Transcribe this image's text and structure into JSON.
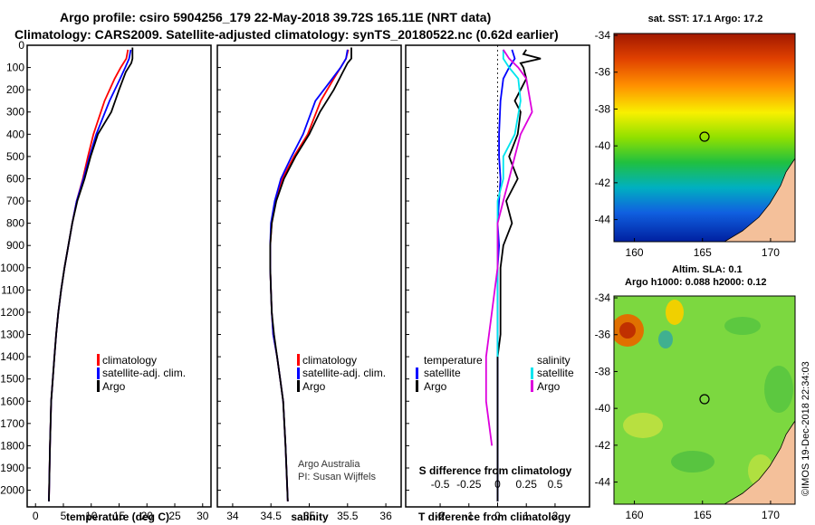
{
  "title": {
    "line1": "Argo profile: csiro 5904256_179 22-May-2018 39.72S 165.11E (NRT data)",
    "line2": "Climatology: CARS2009. Satellite-adjusted climatology: synTS_20180522.nc (0.62d earlier)"
  },
  "colors": {
    "climatology": "#ff0000",
    "satellite": "#0000ff",
    "argo": "#000000",
    "sat_salinity": "#00e5ee",
    "argo_salinity": "#dd00dd"
  },
  "depth_ticks": [
    0,
    100,
    200,
    300,
    400,
    500,
    600,
    700,
    800,
    900,
    1000,
    1100,
    1200,
    1300,
    1400,
    1500,
    1600,
    1700,
    1800,
    1900,
    2000
  ],
  "legend": {
    "climatology": "climatology",
    "satellite_adj": "satellite-adj. clim.",
    "argo": "Argo",
    "temperature": "temperature",
    "salinity": "salinity",
    "satellite": "satellite"
  },
  "credit": {
    "line1": "Argo Australia",
    "line2": "PI: Susan Wijffels"
  },
  "map_top": {
    "title": "sat. SST: 17.1 Argo: 17.2"
  },
  "map_bottom": {
    "title1": "Altim. SLA: 0.1",
    "title2": "Argo h1000: 0.088 h2000: 0.12"
  },
  "timestamp": "©IMOS 19-Dec-2018 22:34:03",
  "chart_data": [
    {
      "type": "line",
      "xlabel": "temperature (deg C)",
      "ylim": [
        2075,
        0
      ],
      "xlim": [
        -1.5,
        31.5
      ],
      "xticks": [
        0,
        5,
        10,
        15,
        20,
        25,
        30
      ],
      "series": [
        {
          "name": "climatology",
          "x": [
            16.6,
            16.3,
            15.3,
            14.2,
            12.4,
            10.4,
            9.4,
            8.5,
            7.4,
            6.6,
            5.9,
            5.2,
            4.6,
            4.1,
            3.7,
            3.4,
            3.1,
            2.8,
            2.6,
            2.4
          ],
          "y": [
            20,
            60,
            100,
            150,
            250,
            400,
            500,
            600,
            700,
            800,
            900,
            1000,
            1100,
            1200,
            1300,
            1400,
            1500,
            1600,
            1800,
            2050
          ]
        },
        {
          "name": "satellite-adj. clim.",
          "x": [
            17.1,
            16.8,
            16.1,
            15.2,
            13.3,
            10.9,
            9.7,
            8.6,
            7.4,
            6.6,
            5.9,
            5.2,
            4.6,
            4.1,
            3.7,
            3.4,
            3.1,
            2.8,
            2.6,
            2.4
          ],
          "y": [
            20,
            60,
            100,
            150,
            250,
            400,
            500,
            600,
            700,
            800,
            900,
            1000,
            1100,
            1200,
            1300,
            1400,
            1500,
            1600,
            1800,
            2050
          ]
        },
        {
          "name": "Argo",
          "x": [
            17.4,
            17.4,
            17.2,
            16.2,
            15.0,
            13.6,
            11.2,
            9.9,
            8.8,
            7.5,
            6.6,
            5.9,
            5.2,
            4.6,
            4.1,
            3.7,
            3.4,
            3.1,
            2.8,
            2.6,
            2.4
          ],
          "y": [
            10,
            60,
            80,
            120,
            200,
            300,
            400,
            500,
            600,
            700,
            800,
            900,
            1000,
            1100,
            1200,
            1300,
            1400,
            1500,
            1600,
            1800,
            2050
          ]
        }
      ]
    },
    {
      "type": "line",
      "xlabel": "salinity",
      "ylim": [
        2075,
        0
      ],
      "xlim": [
        33.8,
        36.2
      ],
      "xticks": [
        34,
        34.5,
        35,
        35.5,
        36
      ],
      "series": [
        {
          "name": "climatology",
          "x": [
            35.51,
            35.48,
            35.41,
            35.32,
            35.15,
            34.98,
            34.8,
            34.65,
            34.56,
            34.51,
            34.49,
            34.49,
            34.5,
            34.51,
            34.53,
            34.58,
            34.62,
            34.66,
            34.69,
            34.72
          ],
          "y": [
            20,
            60,
            100,
            150,
            250,
            400,
            500,
            600,
            700,
            800,
            900,
            1000,
            1100,
            1200,
            1300,
            1400,
            1500,
            1600,
            1800,
            2050
          ]
        },
        {
          "name": "satellite-adj. clim.",
          "x": [
            35.5,
            35.48,
            35.41,
            35.3,
            35.08,
            34.92,
            34.77,
            34.63,
            34.55,
            34.5,
            34.49,
            34.49,
            34.5,
            34.51,
            34.53,
            34.58,
            34.62,
            34.66,
            34.69,
            34.72
          ],
          "y": [
            20,
            60,
            100,
            150,
            250,
            400,
            500,
            600,
            700,
            800,
            900,
            1000,
            1100,
            1200,
            1300,
            1400,
            1500,
            1600,
            1800,
            2050
          ]
        },
        {
          "name": "Argo",
          "x": [
            35.55,
            35.55,
            35.5,
            35.44,
            35.32,
            35.14,
            35.0,
            34.82,
            34.67,
            34.57,
            34.51,
            34.49,
            34.49,
            34.5,
            34.51,
            34.54,
            34.58,
            34.62,
            34.66,
            34.69,
            34.72
          ],
          "y": [
            10,
            60,
            80,
            120,
            200,
            300,
            400,
            500,
            600,
            700,
            800,
            900,
            1000,
            1100,
            1200,
            1300,
            1400,
            1500,
            1600,
            1800,
            2050
          ]
        }
      ]
    },
    {
      "type": "line",
      "xlabel": "T difference from climatology",
      "secondary_xlabel": "S difference from climatology",
      "ylim": [
        2075,
        0
      ],
      "xlim": [
        -3.2,
        3.2
      ],
      "xticks": [
        -2,
        -1,
        0,
        1,
        2
      ],
      "secondary_xticks": [
        -0.5,
        -0.25,
        0,
        0.25,
        0.5
      ],
      "secondary_ticklabels": [
        "-0.5",
        "-0.25",
        "0",
        "0.25",
        "0.5"
      ],
      "series": [
        {
          "name": "temperature satellite",
          "x": [
            0.5,
            0.6,
            0.4,
            0.2,
            0.1,
            0.05,
            0.05,
            0.1,
            0.05,
            0.0,
            0.05,
            0.0,
            0.0,
            0.0,
            0.0,
            0.0,
            0.0,
            0.0,
            0.0
          ],
          "y": [
            20,
            60,
            100,
            150,
            250,
            400,
            500,
            600,
            700,
            800,
            900,
            1000,
            1100,
            1200,
            1400,
            1600,
            1800,
            2000,
            2050
          ]
        },
        {
          "name": "temperature Argo",
          "x": [
            1.0,
            0.9,
            1.5,
            0.8,
            0.9,
            1.0,
            0.8,
            0.6,
            0.8,
            0.7,
            0.4,
            0.7,
            0.3,
            0.5,
            0.2,
            0.1,
            0.1,
            0.1,
            0.1,
            0.0,
            0.0,
            0.0,
            0.0
          ],
          "y": [
            20,
            40,
            60,
            80,
            100,
            150,
            200,
            250,
            300,
            400,
            500,
            600,
            700,
            800,
            900,
            1000,
            1100,
            1200,
            1300,
            1400,
            1600,
            1800,
            2050
          ]
        },
        {
          "name": "salinity satellite",
          "x": [
            0.05,
            0.05,
            0.1,
            0.18,
            0.2,
            0.15,
            0.05,
            0.05,
            0.0,
            0.0,
            0.0,
            0.0,
            0.0,
            0.0,
            0.0,
            0.0
          ],
          "y": [
            20,
            60,
            100,
            150,
            250,
            400,
            500,
            600,
            700,
            800,
            900,
            1000,
            1100,
            1200,
            1300,
            1400
          ]
        },
        {
          "name": "salinity Argo",
          "x": [
            0.05,
            0.1,
            0.18,
            0.25,
            0.3,
            0.2,
            0.15,
            0.1,
            0.05,
            0.0,
            0.0,
            -0.05,
            -0.1,
            -0.1,
            -0.05
          ],
          "y": [
            20,
            60,
            100,
            150,
            300,
            400,
            500,
            600,
            700,
            800,
            1000,
            1200,
            1400,
            1600,
            1800
          ]
        }
      ]
    },
    {
      "type": "heatmap",
      "title": "sat. SST: 17.1 Argo: 17.2",
      "xlim": [
        158.5,
        171.8
      ],
      "ylim": [
        -45.2,
        -33.9
      ],
      "xticks": [
        160,
        165,
        170
      ],
      "yticks": [
        -34,
        -36,
        -38,
        -40,
        -42,
        -44
      ],
      "marker": {
        "lon": 165.11,
        "lat": -39.72
      }
    },
    {
      "type": "heatmap",
      "title": "Altim. SLA: 0.1",
      "xlim": [
        158.5,
        171.8
      ],
      "ylim": [
        -45.2,
        -33.9
      ],
      "xticks": [
        160,
        165,
        170
      ],
      "yticks": [
        -34,
        -36,
        -38,
        -40,
        -42,
        -44
      ],
      "marker": {
        "lon": 165.11,
        "lat": -39.72
      }
    }
  ]
}
